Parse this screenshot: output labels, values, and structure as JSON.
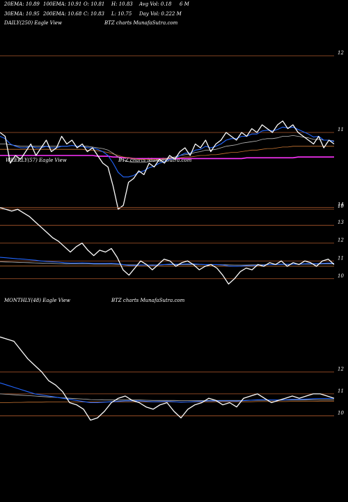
{
  "header": {
    "row1": [
      "20EMA: 10.89",
      "100EMA: 10.91",
      "O: 10.81",
      "H: 10.83",
      "Avg Vol: 0.18",
      "6  M"
    ],
    "row2": [
      "30EMA: 10.95",
      "200EMA: 10.68",
      "C: 10.83",
      "L: 10.75",
      "Day Vol: 0.222  M"
    ]
  },
  "panels": {
    "daily": {
      "label": "DAILY(250) Eagle  View",
      "source": "BTZ charts MunafaSutra.com"
    },
    "weekly": {
      "label": "WEEKLY(57) Eagle  View",
      "source": "BTZ charts MunafaSutra.com"
    },
    "monthly": {
      "label": "MONTHLY(48) Eagle  View",
      "source": "BTZ charts MunafaSutra.com"
    }
  },
  "colors": {
    "background": "#000000",
    "price": "#ffffff",
    "ema_blue": "#2266ff",
    "ema_cyan": "#44aaff",
    "ema_magenta": "#ff33ff",
    "ema_red": "#ff3333",
    "ema_orange": "#cc7733",
    "ema_grey": "#bbbbbb",
    "gridline": "#b05a2e"
  },
  "chart_data": [
    {
      "type": "line",
      "title": "DAILY(250) Eagle  View",
      "ylim": [
        10.0,
        12.4
      ],
      "gridlines": [
        12,
        11,
        10
      ],
      "tick_labels": [
        "12",
        "11",
        "10"
      ],
      "series": [
        {
          "values": [
            11.0,
            10.95,
            10.6,
            10.7,
            10.65,
            10.75,
            10.85,
            10.7,
            10.8,
            10.9,
            10.75,
            10.8,
            10.95,
            10.85,
            10.9,
            10.8,
            10.85,
            10.75,
            10.8,
            10.7,
            10.6,
            10.55,
            10.3,
            10.0,
            10.05,
            10.35,
            10.4,
            10.5,
            10.45,
            10.6,
            10.55,
            10.65,
            10.6,
            10.7,
            10.65,
            10.75,
            10.8,
            10.7,
            10.85,
            10.8,
            10.9,
            10.75,
            10.85,
            10.9,
            11.0,
            10.95,
            10.9,
            11.0,
            10.95,
            11.05,
            11.0,
            11.1,
            11.05,
            11.0,
            11.1,
            11.15,
            11.05,
            11.1,
            11.0,
            10.95,
            10.9,
            10.85,
            10.95,
            10.8,
            10.9,
            10.85
          ]
        },
        {
          "values": [
            10.95,
            10.92,
            10.85,
            10.82,
            10.8,
            10.8,
            10.82,
            10.8,
            10.8,
            10.82,
            10.8,
            10.8,
            10.82,
            10.82,
            10.83,
            10.82,
            10.82,
            10.8,
            10.8,
            10.78,
            10.75,
            10.7,
            10.6,
            10.48,
            10.42,
            10.42,
            10.44,
            10.48,
            10.5,
            10.54,
            10.56,
            10.6,
            10.62,
            10.65,
            10.66,
            10.7,
            10.73,
            10.73,
            10.77,
            10.78,
            10.82,
            10.8,
            10.82,
            10.85,
            10.9,
            10.92,
            10.92,
            10.95,
            10.95,
            10.98,
            10.98,
            11.02,
            11.03,
            11.02,
            11.04,
            11.07,
            11.06,
            11.07,
            11.04,
            11.01,
            10.98,
            10.94,
            10.95,
            10.9,
            10.9,
            10.88
          ]
        },
        {
          "values": [
            10.85,
            10.85,
            10.84,
            10.83,
            10.82,
            10.82,
            10.82,
            10.82,
            10.82,
            10.82,
            10.82,
            10.82,
            10.82,
            10.82,
            10.83,
            10.82,
            10.82,
            10.82,
            10.81,
            10.8,
            10.79,
            10.77,
            10.73,
            10.68,
            10.64,
            10.62,
            10.61,
            10.61,
            10.61,
            10.62,
            10.63,
            10.64,
            10.65,
            10.67,
            10.68,
            10.7,
            10.71,
            10.72,
            10.74,
            10.75,
            10.77,
            10.77,
            10.78,
            10.8,
            10.82,
            10.83,
            10.84,
            10.86,
            10.87,
            10.88,
            10.89,
            10.91,
            10.92,
            10.92,
            10.93,
            10.95,
            10.95,
            10.96,
            10.95,
            10.94,
            10.93,
            10.91,
            10.91,
            10.9,
            10.9,
            10.89
          ]
        },
        {
          "values": [
            10.78,
            10.78,
            10.78,
            10.78,
            10.78,
            10.78,
            10.78,
            10.78,
            10.78,
            10.78,
            10.78,
            10.78,
            10.78,
            10.78,
            10.78,
            10.78,
            10.78,
            10.77,
            10.77,
            10.76,
            10.75,
            10.74,
            10.72,
            10.7,
            10.68,
            10.67,
            10.66,
            10.65,
            10.65,
            10.65,
            10.65,
            10.65,
            10.66,
            10.66,
            10.67,
            10.67,
            10.68,
            10.68,
            10.69,
            10.7,
            10.7,
            10.71,
            10.71,
            10.72,
            10.73,
            10.74,
            10.74,
            10.75,
            10.76,
            10.77,
            10.77,
            10.78,
            10.79,
            10.79,
            10.8,
            10.81,
            10.81,
            10.82,
            10.82,
            10.82,
            10.82,
            10.82,
            10.82,
            10.82,
            10.82,
            10.82
          ]
        },
        {
          "values": [
            10.7,
            10.7,
            10.7,
            10.7,
            10.7,
            10.7,
            10.7,
            10.7,
            10.7,
            10.7,
            10.7,
            10.7,
            10.7,
            10.7,
            10.7,
            10.7,
            10.7,
            10.7,
            10.7,
            10.69,
            10.69,
            10.69,
            10.68,
            10.68,
            10.67,
            10.67,
            10.66,
            10.66,
            10.66,
            10.66,
            10.66,
            10.66,
            10.66,
            10.66,
            10.66,
            10.66,
            10.66,
            10.66,
            10.66,
            10.66,
            10.66,
            10.66,
            10.66,
            10.66,
            10.66,
            10.66,
            10.66,
            10.66,
            10.67,
            10.67,
            10.67,
            10.67,
            10.67,
            10.67,
            10.67,
            10.67,
            10.67,
            10.67,
            10.68,
            10.68,
            10.68,
            10.68,
            10.68,
            10.68,
            10.68,
            10.68
          ]
        }
      ]
    },
    {
      "type": "line",
      "title": "WEEKLY(57) Eagle  View",
      "ylim": [
        9.6,
        14.3
      ],
      "gridlines": [
        14,
        13,
        12,
        11,
        10
      ],
      "tick_labels": [
        "14",
        "13",
        "12",
        "11",
        "10"
      ],
      "series": [
        {
          "values": [
            14.0,
            13.9,
            13.8,
            13.9,
            13.7,
            13.5,
            13.2,
            12.9,
            12.6,
            12.3,
            12.1,
            11.8,
            11.5,
            11.8,
            12.0,
            11.6,
            11.3,
            11.6,
            11.5,
            11.7,
            11.2,
            10.5,
            10.2,
            10.6,
            11.0,
            10.8,
            10.5,
            10.8,
            11.1,
            11.0,
            10.7,
            10.9,
            11.0,
            10.8,
            10.5,
            10.7,
            10.8,
            10.6,
            10.2,
            9.7,
            10.0,
            10.4,
            10.6,
            10.5,
            10.8,
            10.7,
            10.9,
            10.8,
            11.0,
            10.7,
            10.9,
            10.8,
            11.0,
            10.9,
            10.7,
            11.0,
            11.1,
            10.8
          ]
        },
        {
          "values": [
            11.2,
            11.18,
            11.15,
            11.12,
            11.1,
            11.07,
            11.04,
            11.0,
            10.97,
            10.95,
            10.93,
            10.9,
            10.88,
            10.88,
            10.89,
            10.88,
            10.86,
            10.86,
            10.86,
            10.87,
            10.85,
            10.8,
            10.75,
            10.75,
            10.78,
            10.78,
            10.76,
            10.77,
            10.8,
            10.82,
            10.81,
            10.82,
            10.83,
            10.83,
            10.81,
            10.8,
            10.8,
            10.8,
            10.77,
            10.72,
            10.7,
            10.71,
            10.73,
            10.74,
            10.76,
            10.77,
            10.79,
            10.8,
            10.82,
            10.81,
            10.82,
            10.82,
            10.84,
            10.85,
            10.84,
            10.86,
            10.88,
            10.87
          ]
        },
        {
          "values": [
            10.95,
            10.94,
            10.93,
            10.92,
            10.91,
            10.9,
            10.89,
            10.88,
            10.87,
            10.86,
            10.85,
            10.84,
            10.83,
            10.83,
            10.83,
            10.83,
            10.82,
            10.82,
            10.82,
            10.82,
            10.81,
            10.8,
            10.78,
            10.78,
            10.78,
            10.78,
            10.78,
            10.78,
            10.79,
            10.79,
            10.79,
            10.79,
            10.8,
            10.8,
            10.8,
            10.8,
            10.8,
            10.8,
            10.79,
            10.78,
            10.77,
            10.77,
            10.77,
            10.78,
            10.78,
            10.79,
            10.79,
            10.8,
            10.8,
            10.8,
            10.81,
            10.81,
            10.82,
            10.82,
            10.82,
            10.83,
            10.83,
            10.83
          ]
        },
        {
          "values": [
            10.72,
            10.72,
            10.72,
            10.72,
            10.72,
            10.72,
            10.72,
            10.72,
            10.72,
            10.72,
            10.72,
            10.72,
            10.72,
            10.72,
            10.72,
            10.72,
            10.72,
            10.72,
            10.72,
            10.72,
            10.72,
            10.72,
            10.71,
            10.71,
            10.71,
            10.71,
            10.71,
            10.71,
            10.71,
            10.71,
            10.71,
            10.71,
            10.71,
            10.71,
            10.71,
            10.71,
            10.71,
            10.71,
            10.71,
            10.7,
            10.7,
            10.7,
            10.7,
            10.7,
            10.7,
            10.7,
            10.7,
            10.7,
            10.7,
            10.7,
            10.7,
            10.7,
            10.7,
            10.7,
            10.7,
            10.7,
            10.7,
            10.7
          ]
        }
      ]
    },
    {
      "type": "line",
      "title": "MONTHLY(48) Eagle  View",
      "ylim": [
        9.5,
        14.5
      ],
      "gridlines": [
        12,
        11,
        10
      ],
      "tick_labels": [
        "12",
        "11",
        "10"
      ],
      "series": [
        {
          "values": [
            13.6,
            13.5,
            13.4,
            13.0,
            12.6,
            12.3,
            12.0,
            11.6,
            11.4,
            11.1,
            10.6,
            10.5,
            10.3,
            9.8,
            9.9,
            10.2,
            10.6,
            10.8,
            10.9,
            10.7,
            10.6,
            10.4,
            10.3,
            10.5,
            10.6,
            10.2,
            9.9,
            10.3,
            10.5,
            10.6,
            10.8,
            10.7,
            10.5,
            10.6,
            10.4,
            10.8,
            10.9,
            11.0,
            10.8,
            10.6,
            10.7,
            10.8,
            10.9,
            10.8,
            10.9,
            11.0,
            11.0,
            10.9,
            10.8
          ]
        },
        {
          "values": [
            11.5,
            11.4,
            11.3,
            11.2,
            11.1,
            11.0,
            10.95,
            10.9,
            10.85,
            10.8,
            10.75,
            10.7,
            10.65,
            10.6,
            10.6,
            10.62,
            10.64,
            10.66,
            10.68,
            10.68,
            10.68,
            10.66,
            10.64,
            10.65,
            10.66,
            10.64,
            10.62,
            10.63,
            10.65,
            10.66,
            10.68,
            10.68,
            10.68,
            10.68,
            10.67,
            10.69,
            10.71,
            10.73,
            10.73,
            10.72,
            10.72,
            10.73,
            10.75,
            10.75,
            10.76,
            10.78,
            10.79,
            10.79,
            10.79
          ]
        },
        {
          "values": [
            11.0,
            10.98,
            10.96,
            10.94,
            10.92,
            10.9,
            10.88,
            10.86,
            10.84,
            10.82,
            10.8,
            10.78,
            10.76,
            10.74,
            10.73,
            10.72,
            10.72,
            10.72,
            10.72,
            10.72,
            10.72,
            10.71,
            10.7,
            10.7,
            10.7,
            10.7,
            10.69,
            10.69,
            10.69,
            10.69,
            10.7,
            10.7,
            10.7,
            10.7,
            10.7,
            10.7,
            10.71,
            10.71,
            10.71,
            10.71,
            10.71,
            10.72,
            10.72,
            10.72,
            10.72,
            10.73,
            10.73,
            10.73,
            10.73
          ]
        },
        {
          "values": [
            10.6,
            10.6,
            10.61,
            10.61,
            10.62,
            10.62,
            10.62,
            10.63,
            10.63,
            10.63,
            10.63,
            10.63,
            10.63,
            10.63,
            10.63,
            10.63,
            10.63,
            10.63,
            10.63,
            10.63,
            10.63,
            10.63,
            10.63,
            10.63,
            10.63,
            10.63,
            10.63,
            10.63,
            10.63,
            10.63,
            10.63,
            10.64,
            10.64,
            10.64,
            10.64,
            10.64,
            10.64,
            10.65,
            10.65,
            10.65,
            10.65,
            10.65,
            10.66,
            10.66,
            10.66,
            10.66,
            10.67,
            10.67,
            10.67
          ]
        }
      ]
    }
  ]
}
